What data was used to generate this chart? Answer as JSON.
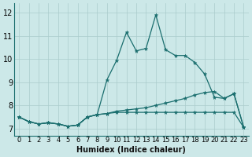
{
  "xlabel": "Humidex (Indice chaleur)",
  "xlim": [
    -0.5,
    23.5
  ],
  "ylim": [
    6.7,
    12.4
  ],
  "yticks": [
    7,
    8,
    9,
    10,
    11,
    12
  ],
  "xticks": [
    0,
    1,
    2,
    3,
    4,
    5,
    6,
    7,
    8,
    9,
    10,
    11,
    12,
    13,
    14,
    15,
    16,
    17,
    18,
    19,
    20,
    21,
    22,
    23
  ],
  "bg_color": "#cce8e8",
  "grid_color": "#aacccc",
  "line_color": "#1a6e6e",
  "line1_y": [
    7.5,
    7.3,
    7.2,
    7.25,
    7.2,
    7.1,
    7.15,
    7.5,
    7.6,
    9.1,
    9.95,
    11.15,
    10.35,
    10.45,
    11.9,
    10.4,
    10.15,
    10.15,
    9.85,
    9.35,
    8.35,
    8.3,
    8.5,
    7.05
  ],
  "line2_y": [
    7.5,
    7.3,
    7.2,
    7.25,
    7.2,
    7.1,
    7.15,
    7.5,
    7.6,
    7.65,
    7.75,
    7.8,
    7.85,
    7.9,
    8.0,
    8.1,
    8.2,
    8.3,
    8.45,
    8.55,
    8.6,
    8.3,
    8.5,
    7.05
  ],
  "line3_y": [
    7.5,
    7.3,
    7.2,
    7.25,
    7.2,
    7.1,
    7.15,
    7.5,
    7.6,
    7.65,
    7.7,
    7.7,
    7.7,
    7.7,
    7.7,
    7.7,
    7.7,
    7.7,
    7.7,
    7.7,
    7.7,
    7.7,
    7.7,
    7.05
  ],
  "tick_fontsize": 6,
  "xlabel_fontsize": 7
}
